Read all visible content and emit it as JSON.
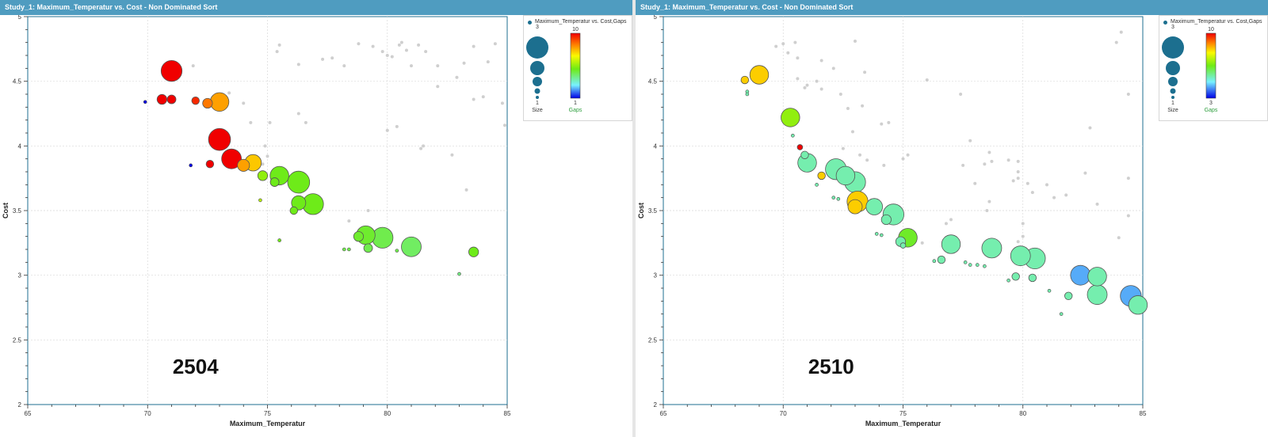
{
  "panels": [
    {
      "title": "Study_1: Maximum_Temperatur vs. Cost - Non Dominated Sort",
      "label": "2504",
      "legend": {
        "entry": "Maximum_Temperatur vs. Cost,Gaps",
        "size_title": "Size",
        "size_max": "3",
        "size_min": "1",
        "color_title": "Gaps",
        "color_max": "10",
        "color_min": "1"
      }
    },
    {
      "title": "Study_1: Maximum_Temperatur vs. Cost - Non Dominated Sort",
      "label": "2510",
      "legend": {
        "entry": "Maximum_Temperatur vs. Cost,Gaps",
        "size_title": "Size",
        "size_max": "3",
        "size_min": "1",
        "color_title": "Gaps",
        "color_max": "10",
        "color_min": "3"
      }
    }
  ],
  "colors": {
    "titlebar": "#4f9cc0",
    "size_legend": "#1c6f8f",
    "dominated": "#cfcfcf",
    "gaps_legend_label": "#2e9e3e"
  },
  "chart_data": [
    {
      "type": "scatter",
      "xlabel": "Maximum_Temperatur",
      "ylabel": "Cost",
      "xlim": [
        65,
        85
      ],
      "ylim": [
        2,
        5
      ],
      "xticks": [
        65,
        70,
        75,
        80,
        85
      ],
      "yticks": [
        2,
        2.5,
        3,
        3.5,
        4,
        4.5,
        5
      ],
      "grid": true,
      "legend_position": "right",
      "size_range": [
        1,
        3
      ],
      "color_range": [
        1,
        10
      ],
      "pareto_points": [
        {
          "x": 71.0,
          "y": 4.58,
          "size": 2.6,
          "gaps": 10
        },
        {
          "x": 70.6,
          "y": 4.36,
          "size": 1.6,
          "gaps": 10
        },
        {
          "x": 71.0,
          "y": 4.36,
          "size": 1.5,
          "gaps": 10
        },
        {
          "x": 72.0,
          "y": 4.35,
          "size": 1.4,
          "gaps": 9.5
        },
        {
          "x": 72.5,
          "y": 4.33,
          "size": 1.6,
          "gaps": 8.5
        },
        {
          "x": 73.0,
          "y": 4.34,
          "size": 2.4,
          "gaps": 8
        },
        {
          "x": 73.0,
          "y": 4.05,
          "size": 2.7,
          "gaps": 10
        },
        {
          "x": 73.5,
          "y": 3.9,
          "size": 2.5,
          "gaps": 10
        },
        {
          "x": 72.6,
          "y": 3.86,
          "size": 1.4,
          "gaps": 10
        },
        {
          "x": 74.0,
          "y": 3.85,
          "size": 1.8,
          "gaps": 8
        },
        {
          "x": 74.4,
          "y": 3.87,
          "size": 2.2,
          "gaps": 7.5
        },
        {
          "x": 74.8,
          "y": 3.77,
          "size": 1.6,
          "gaps": 5.5
        },
        {
          "x": 75.3,
          "y": 3.72,
          "size": 1.5,
          "gaps": 5
        },
        {
          "x": 75.5,
          "y": 3.77,
          "size": 2.4,
          "gaps": 5
        },
        {
          "x": 76.3,
          "y": 3.72,
          "size": 2.7,
          "gaps": 5
        },
        {
          "x": 76.1,
          "y": 3.5,
          "size": 1.4,
          "gaps": 5
        },
        {
          "x": 76.3,
          "y": 3.56,
          "size": 2.0,
          "gaps": 5
        },
        {
          "x": 76.9,
          "y": 3.55,
          "size": 2.6,
          "gaps": 5
        },
        {
          "x": 78.8,
          "y": 3.3,
          "size": 1.6,
          "gaps": 4.8
        },
        {
          "x": 79.1,
          "y": 3.31,
          "size": 2.4,
          "gaps": 4.8
        },
        {
          "x": 79.2,
          "y": 3.21,
          "size": 1.5,
          "gaps": 4.5
        },
        {
          "x": 79.8,
          "y": 3.29,
          "size": 2.6,
          "gaps": 4.5
        },
        {
          "x": 81.0,
          "y": 3.22,
          "size": 2.5,
          "gaps": 4.3
        },
        {
          "x": 83.6,
          "y": 3.18,
          "size": 1.6,
          "gaps": 5
        },
        {
          "x": 69.9,
          "y": 4.34,
          "size": 1.0,
          "gaps": 1
        },
        {
          "x": 71.8,
          "y": 3.85,
          "size": 1.0,
          "gaps": 1
        },
        {
          "x": 74.7,
          "y": 3.58,
          "size": 1.0,
          "gaps": 6
        },
        {
          "x": 75.5,
          "y": 3.27,
          "size": 1.0,
          "gaps": 5
        },
        {
          "x": 78.2,
          "y": 3.2,
          "size": 1.0,
          "gaps": 4.5
        },
        {
          "x": 78.4,
          "y": 3.2,
          "size": 1.0,
          "gaps": 4.5
        },
        {
          "x": 80.4,
          "y": 3.19,
          "size": 1.0,
          "gaps": 4.5
        },
        {
          "x": 83.0,
          "y": 3.01,
          "size": 1.0,
          "gaps": 4
        }
      ],
      "dominated_points": [
        {
          "x": 71.9,
          "y": 4.62
        },
        {
          "x": 73.4,
          "y": 4.41
        },
        {
          "x": 74.0,
          "y": 4.33
        },
        {
          "x": 74.3,
          "y": 4.18
        },
        {
          "x": 75.1,
          "y": 4.18
        },
        {
          "x": 74.9,
          "y": 4.0
        },
        {
          "x": 75.0,
          "y": 3.92
        },
        {
          "x": 74.8,
          "y": 3.86
        },
        {
          "x": 75.4,
          "y": 4.73
        },
        {
          "x": 75.5,
          "y": 4.78
        },
        {
          "x": 76.3,
          "y": 4.63
        },
        {
          "x": 76.3,
          "y": 4.25
        },
        {
          "x": 76.6,
          "y": 4.18
        },
        {
          "x": 77.3,
          "y": 4.67
        },
        {
          "x": 77.7,
          "y": 4.68
        },
        {
          "x": 78.2,
          "y": 4.62
        },
        {
          "x": 78.8,
          "y": 4.79
        },
        {
          "x": 79.4,
          "y": 4.77
        },
        {
          "x": 79.8,
          "y": 4.73
        },
        {
          "x": 80.0,
          "y": 4.7
        },
        {
          "x": 80.2,
          "y": 4.69
        },
        {
          "x": 80.5,
          "y": 4.78
        },
        {
          "x": 80.8,
          "y": 4.74
        },
        {
          "x": 81.0,
          "y": 4.62
        },
        {
          "x": 81.3,
          "y": 4.78
        },
        {
          "x": 81.6,
          "y": 4.73
        },
        {
          "x": 82.1,
          "y": 4.62
        },
        {
          "x": 82.1,
          "y": 4.46
        },
        {
          "x": 82.9,
          "y": 4.53
        },
        {
          "x": 83.2,
          "y": 4.64
        },
        {
          "x": 83.6,
          "y": 4.77
        },
        {
          "x": 83.6,
          "y": 4.36
        },
        {
          "x": 84.0,
          "y": 4.38
        },
        {
          "x": 84.2,
          "y": 4.65
        },
        {
          "x": 84.5,
          "y": 4.79
        },
        {
          "x": 84.8,
          "y": 4.33
        },
        {
          "x": 84.9,
          "y": 4.16
        },
        {
          "x": 80.0,
          "y": 4.12
        },
        {
          "x": 80.4,
          "y": 4.15
        },
        {
          "x": 81.4,
          "y": 3.98
        },
        {
          "x": 81.5,
          "y": 4.0
        },
        {
          "x": 82.7,
          "y": 3.93
        },
        {
          "x": 83.3,
          "y": 3.66
        },
        {
          "x": 79.2,
          "y": 3.5
        },
        {
          "x": 78.4,
          "y": 3.42
        },
        {
          "x": 80.6,
          "y": 4.8
        }
      ]
    },
    {
      "type": "scatter",
      "xlabel": "Maximum_Temperatur",
      "ylabel": "Cost",
      "xlim": [
        65,
        85
      ],
      "ylim": [
        2,
        5
      ],
      "xticks": [
        65,
        70,
        75,
        80,
        85
      ],
      "yticks": [
        2,
        2.5,
        3,
        3.5,
        4,
        4.5,
        5
      ],
      "grid": true,
      "legend_position": "right",
      "size_range": [
        1,
        3
      ],
      "color_range": [
        3,
        10
      ],
      "pareto_points": [
        {
          "x": 68.4,
          "y": 4.51,
          "size": 1.4,
          "gaps": 8
        },
        {
          "x": 69.0,
          "y": 4.55,
          "size": 2.4,
          "gaps": 8
        },
        {
          "x": 70.3,
          "y": 4.22,
          "size": 2.4,
          "gaps": 6.5
        },
        {
          "x": 70.7,
          "y": 3.99,
          "size": 1.2,
          "gaps": 10
        },
        {
          "x": 70.9,
          "y": 3.93,
          "size": 1.4,
          "gaps": 5
        },
        {
          "x": 71.0,
          "y": 3.87,
          "size": 2.4,
          "gaps": 5
        },
        {
          "x": 71.6,
          "y": 3.77,
          "size": 1.4,
          "gaps": 8
        },
        {
          "x": 72.2,
          "y": 3.82,
          "size": 2.6,
          "gaps": 5
        },
        {
          "x": 72.6,
          "y": 3.77,
          "size": 2.4,
          "gaps": 5
        },
        {
          "x": 73.0,
          "y": 3.72,
          "size": 2.6,
          "gaps": 5
        },
        {
          "x": 73.0,
          "y": 3.53,
          "size": 2.0,
          "gaps": 8
        },
        {
          "x": 73.1,
          "y": 3.57,
          "size": 2.6,
          "gaps": 8
        },
        {
          "x": 73.8,
          "y": 3.53,
          "size": 2.2,
          "gaps": 5
        },
        {
          "x": 74.3,
          "y": 3.43,
          "size": 1.6,
          "gaps": 5
        },
        {
          "x": 74.6,
          "y": 3.47,
          "size": 2.6,
          "gaps": 5
        },
        {
          "x": 74.9,
          "y": 3.26,
          "size": 1.6,
          "gaps": 5
        },
        {
          "x": 75.0,
          "y": 3.23,
          "size": 1.2,
          "gaps": 5
        },
        {
          "x": 75.2,
          "y": 3.29,
          "size": 2.4,
          "gaps": 6
        },
        {
          "x": 76.6,
          "y": 3.12,
          "size": 1.4,
          "gaps": 5
        },
        {
          "x": 77.0,
          "y": 3.24,
          "size": 2.4,
          "gaps": 5
        },
        {
          "x": 78.7,
          "y": 3.21,
          "size": 2.5,
          "gaps": 5
        },
        {
          "x": 79.7,
          "y": 2.99,
          "size": 1.4,
          "gaps": 5
        },
        {
          "x": 79.9,
          "y": 3.15,
          "size": 2.5,
          "gaps": 5
        },
        {
          "x": 80.4,
          "y": 2.98,
          "size": 1.4,
          "gaps": 5
        },
        {
          "x": 80.5,
          "y": 3.13,
          "size": 2.6,
          "gaps": 5
        },
        {
          "x": 81.9,
          "y": 2.84,
          "size": 1.4,
          "gaps": 5
        },
        {
          "x": 82.4,
          "y": 3.0,
          "size": 2.5,
          "gaps": 4
        },
        {
          "x": 83.1,
          "y": 2.99,
          "size": 2.4,
          "gaps": 5
        },
        {
          "x": 83.1,
          "y": 2.85,
          "size": 2.5,
          "gaps": 5
        },
        {
          "x": 84.5,
          "y": 2.84,
          "size": 2.6,
          "gaps": 4
        },
        {
          "x": 84.8,
          "y": 2.77,
          "size": 2.4,
          "gaps": 5
        },
        {
          "x": 68.5,
          "y": 4.42,
          "size": 1.0,
          "gaps": 5
        },
        {
          "x": 68.5,
          "y": 4.4,
          "size": 1.0,
          "gaps": 5
        },
        {
          "x": 70.4,
          "y": 4.08,
          "size": 1.0,
          "gaps": 5
        },
        {
          "x": 71.4,
          "y": 3.7,
          "size": 1.0,
          "gaps": 5
        },
        {
          "x": 72.1,
          "y": 3.6,
          "size": 1.0,
          "gaps": 5
        },
        {
          "x": 72.3,
          "y": 3.59,
          "size": 1.0,
          "gaps": 5
        },
        {
          "x": 73.9,
          "y": 3.32,
          "size": 1.0,
          "gaps": 5
        },
        {
          "x": 74.1,
          "y": 3.31,
          "size": 1.0,
          "gaps": 5
        },
        {
          "x": 76.3,
          "y": 3.11,
          "size": 1.0,
          "gaps": 5
        },
        {
          "x": 77.6,
          "y": 3.1,
          "size": 1.0,
          "gaps": 5
        },
        {
          "x": 77.8,
          "y": 3.08,
          "size": 1.0,
          "gaps": 5
        },
        {
          "x": 78.1,
          "y": 3.08,
          "size": 1.0,
          "gaps": 5
        },
        {
          "x": 78.4,
          "y": 3.07,
          "size": 1.0,
          "gaps": 5
        },
        {
          "x": 79.4,
          "y": 2.96,
          "size": 1.0,
          "gaps": 5
        },
        {
          "x": 81.1,
          "y": 2.88,
          "size": 1.0,
          "gaps": 5
        },
        {
          "x": 81.6,
          "y": 2.7,
          "size": 1.0,
          "gaps": 5
        }
      ],
      "dominated_points": [
        {
          "x": 69.7,
          "y": 4.77
        },
        {
          "x": 70.0,
          "y": 4.79
        },
        {
          "x": 70.5,
          "y": 4.8
        },
        {
          "x": 70.2,
          "y": 4.72
        },
        {
          "x": 70.6,
          "y": 4.68
        },
        {
          "x": 70.6,
          "y": 4.52
        },
        {
          "x": 71.0,
          "y": 4.47
        },
        {
          "x": 70.9,
          "y": 4.45
        },
        {
          "x": 71.6,
          "y": 4.66
        },
        {
          "x": 71.4,
          "y": 4.5
        },
        {
          "x": 71.6,
          "y": 4.44
        },
        {
          "x": 72.1,
          "y": 4.6
        },
        {
          "x": 73.0,
          "y": 4.81
        },
        {
          "x": 73.4,
          "y": 4.57
        },
        {
          "x": 72.4,
          "y": 4.4
        },
        {
          "x": 72.7,
          "y": 4.29
        },
        {
          "x": 73.3,
          "y": 4.31
        },
        {
          "x": 72.9,
          "y": 4.11
        },
        {
          "x": 74.1,
          "y": 4.17
        },
        {
          "x": 74.4,
          "y": 4.18
        },
        {
          "x": 74.2,
          "y": 3.85
        },
        {
          "x": 73.5,
          "y": 3.89
        },
        {
          "x": 72.5,
          "y": 3.98
        },
        {
          "x": 76.0,
          "y": 4.51
        },
        {
          "x": 75.2,
          "y": 3.93
        },
        {
          "x": 75.0,
          "y": 3.9
        },
        {
          "x": 73.2,
          "y": 3.93
        },
        {
          "x": 77.4,
          "y": 4.4
        },
        {
          "x": 77.8,
          "y": 4.04
        },
        {
          "x": 77.5,
          "y": 3.85
        },
        {
          "x": 78.4,
          "y": 3.86
        },
        {
          "x": 78.6,
          "y": 3.95
        },
        {
          "x": 78.7,
          "y": 3.88
        },
        {
          "x": 79.4,
          "y": 3.89
        },
        {
          "x": 79.8,
          "y": 3.88
        },
        {
          "x": 79.8,
          "y": 3.8
        },
        {
          "x": 79.8,
          "y": 3.75
        },
        {
          "x": 79.6,
          "y": 3.73
        },
        {
          "x": 80.2,
          "y": 3.71
        },
        {
          "x": 80.4,
          "y": 3.64
        },
        {
          "x": 78.0,
          "y": 3.71
        },
        {
          "x": 81.0,
          "y": 3.7
        },
        {
          "x": 80.0,
          "y": 3.4
        },
        {
          "x": 80.0,
          "y": 3.3
        },
        {
          "x": 79.8,
          "y": 3.26
        },
        {
          "x": 78.5,
          "y": 3.5
        },
        {
          "x": 78.6,
          "y": 3.57
        },
        {
          "x": 81.3,
          "y": 3.6
        },
        {
          "x": 81.8,
          "y": 3.62
        },
        {
          "x": 82.6,
          "y": 3.79
        },
        {
          "x": 82.8,
          "y": 4.14
        },
        {
          "x": 83.1,
          "y": 3.55
        },
        {
          "x": 83.9,
          "y": 4.8
        },
        {
          "x": 84.1,
          "y": 4.88
        },
        {
          "x": 84.4,
          "y": 4.4
        },
        {
          "x": 84.4,
          "y": 3.75
        },
        {
          "x": 84.4,
          "y": 3.46
        },
        {
          "x": 84.0,
          "y": 3.29
        },
        {
          "x": 76.8,
          "y": 3.4
        },
        {
          "x": 77.0,
          "y": 3.43
        },
        {
          "x": 75.8,
          "y": 3.25
        }
      ]
    }
  ]
}
